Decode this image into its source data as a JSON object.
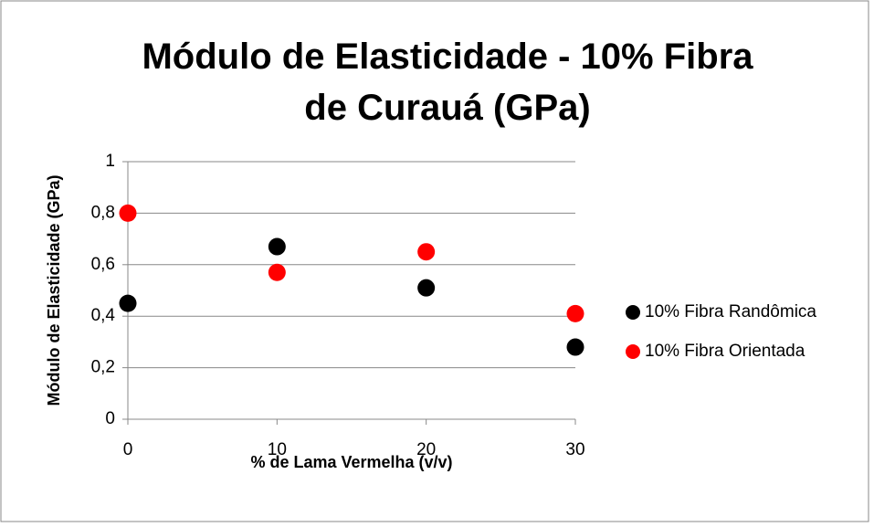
{
  "chart_data": {
    "type": "scatter",
    "title": "Módulo de Elasticidade - 10% Fibra de Curauá (GPa)",
    "xlabel": "% de Lama Vermelha (v/v)",
    "ylabel": "Módulo de Elasticidade (GPa)",
    "series": [
      {
        "name": "10% Fibra Randômica",
        "color": "#000000",
        "x": [
          0,
          10,
          20,
          30
        ],
        "values": [
          0.45,
          0.67,
          0.51,
          0.28
        ]
      },
      {
        "name": "10% Fibra Orientada",
        "color": "#ff0000",
        "x": [
          0,
          10,
          20,
          30
        ],
        "values": [
          0.8,
          0.57,
          0.65,
          0.41
        ]
      }
    ],
    "xlim": [
      0,
      30
    ],
    "xticks": [
      0,
      10,
      20,
      30
    ],
    "ylim": [
      0,
      1
    ],
    "yticks": [
      0,
      {
        "value": 0.2,
        "label": "0,2"
      },
      {
        "value": 0.4,
        "label": "0,4"
      },
      {
        "value": 0.6,
        "label": "0,6"
      },
      {
        "value": 0.8,
        "label": "0,8"
      },
      1
    ],
    "grid": true,
    "legend": "right"
  }
}
